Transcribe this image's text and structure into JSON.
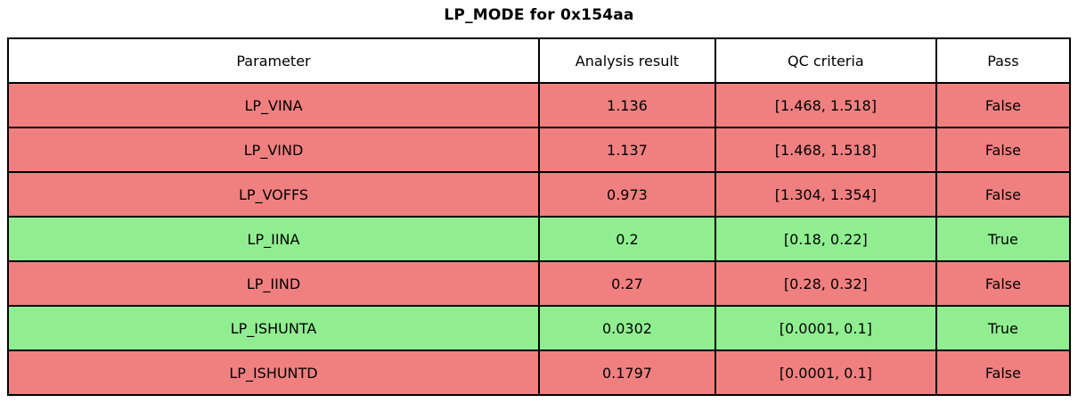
{
  "title": "LP_MODE for 0x154aa",
  "colors": {
    "pass_true_bg": "#90EE90",
    "pass_false_bg": "#F08080",
    "header_bg": "#FFFFFF",
    "border": "#000000",
    "text": "#000000"
  },
  "table": {
    "headers": [
      "Parameter",
      "Analysis result",
      "QC criteria",
      "Pass"
    ],
    "rows": [
      {
        "parameter": "LP_VINA",
        "analysis_result": "1.136",
        "qc_criteria": "[1.468, 1.518]",
        "pass": "False"
      },
      {
        "parameter": "LP_VIND",
        "analysis_result": "1.137",
        "qc_criteria": "[1.468, 1.518]",
        "pass": "False"
      },
      {
        "parameter": "LP_VOFFS",
        "analysis_result": "0.973",
        "qc_criteria": "[1.304, 1.354]",
        "pass": "False"
      },
      {
        "parameter": "LP_IINA",
        "analysis_result": "0.2",
        "qc_criteria": "[0.18, 0.22]",
        "pass": "True"
      },
      {
        "parameter": "LP_IIND",
        "analysis_result": "0.27",
        "qc_criteria": "[0.28, 0.32]",
        "pass": "False"
      },
      {
        "parameter": "LP_ISHUNTA",
        "analysis_result": "0.0302",
        "qc_criteria": "[0.0001, 0.1]",
        "pass": "True"
      },
      {
        "parameter": "LP_ISHUNTD",
        "analysis_result": "0.1797",
        "qc_criteria": "[0.0001, 0.1]",
        "pass": "False"
      }
    ]
  },
  "chart_data": {
    "type": "table",
    "title": "LP_MODE for 0x154aa",
    "columns": [
      "Parameter",
      "Analysis result",
      "QC criteria",
      "Pass"
    ],
    "rows": [
      [
        "LP_VINA",
        1.136,
        "[1.468, 1.518]",
        false
      ],
      [
        "LP_VIND",
        1.137,
        "[1.468, 1.518]",
        false
      ],
      [
        "LP_VOFFS",
        0.973,
        "[1.304, 1.354]",
        false
      ],
      [
        "LP_IINA",
        0.2,
        "[0.18, 0.22]",
        true
      ],
      [
        "LP_IIND",
        0.27,
        "[0.28, 0.32]",
        false
      ],
      [
        "LP_ISHUNTA",
        0.0302,
        "[0.0001, 0.1]",
        true
      ],
      [
        "LP_ISHUNTD",
        0.1797,
        "[0.0001, 0.1]",
        false
      ]
    ],
    "row_color_rule": "pass=true -> light green row, pass=false -> light coral row",
    "legend_position": "none",
    "grid": true
  }
}
